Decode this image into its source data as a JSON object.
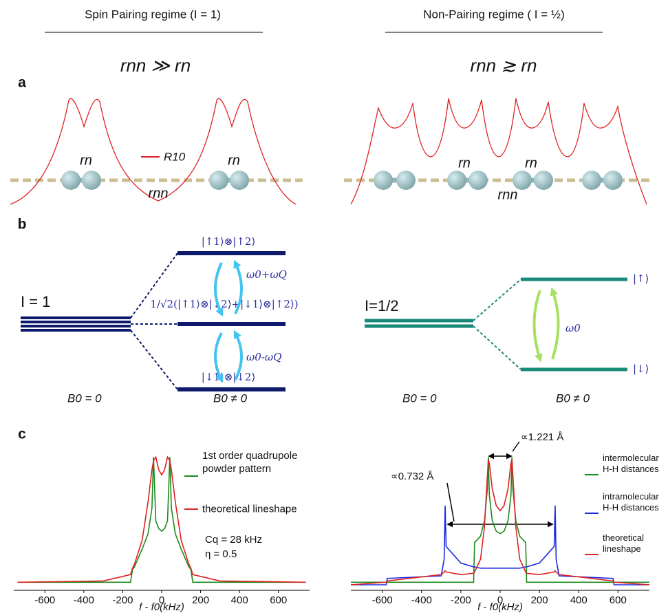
{
  "header": {
    "left_title": "Spin Pairing regime (I = 1)",
    "right_title": "Non-Pairing regime ( I = ½)",
    "left_condition": "rnn ≫ rn",
    "right_condition": "rnn ≳ rn"
  },
  "panel_labels": [
    "a",
    "b",
    "c"
  ],
  "panel_a": {
    "legend": "R10",
    "left_labels": [
      "rn",
      "rn",
      "rnn"
    ],
    "right_labels": [
      "rn",
      "rn",
      "rnn"
    ]
  },
  "panel_b": {
    "left": {
      "spin": "I = 1",
      "states": [
        "|↑1⟩⊗|↑2⟩",
        "1/√2(|↑1⟩⊗|↓2⟩+|↓1⟩⊗|↑2⟩)",
        "|↓1⟩⊗|↓2⟩"
      ],
      "transitions": [
        "ω0+ωQ",
        "ω0-ωQ"
      ],
      "field_off": "B0 = 0",
      "field_on": "B0 ≠ 0"
    },
    "right": {
      "spin": "I=1/2",
      "states": [
        "|↑⟩",
        "|↓⟩"
      ],
      "transition": "ω0",
      "field_off": "B0 = 0",
      "field_on": "B0 ≠ 0"
    }
  },
  "chart_data": [
    {
      "type": "line",
      "xlabel": "f - f0(kHz)",
      "x": [
        -740,
        -300,
        -160,
        -150,
        -140,
        -100,
        -70,
        -50,
        -42,
        -30,
        -15,
        0,
        15,
        30,
        42,
        50,
        70,
        100,
        140,
        150,
        160,
        300,
        740
      ],
      "series": [
        {
          "name": "1st order quadrupole powder pattern",
          "color": "#1a8a1a",
          "values": [
            0.02,
            0.02,
            0.02,
            0.12,
            0.14,
            0.28,
            0.4,
            0.6,
            1.0,
            0.5,
            0.44,
            0.42,
            0.44,
            0.5,
            1.0,
            0.6,
            0.4,
            0.28,
            0.14,
            0.12,
            0.02,
            0.02,
            0.02
          ]
        },
        {
          "name": "theoretical lineshape",
          "color": "#e02020",
          "values": [
            0.02,
            0.03,
            0.08,
            0.13,
            0.16,
            0.35,
            0.65,
            0.9,
            0.97,
            1.0,
            0.9,
            0.86,
            0.9,
            1.0,
            0.97,
            0.9,
            0.65,
            0.35,
            0.16,
            0.13,
            0.08,
            0.03,
            0.02
          ]
        }
      ],
      "annotations": [
        "Cq = 28 kHz",
        "η = 0.5"
      ],
      "xlim": [
        -760,
        760
      ],
      "xticks": [
        -600,
        -400,
        -200,
        0,
        200,
        400,
        600
      ],
      "ylim": [
        0,
        1.05
      ]
    },
    {
      "type": "line",
      "xlabel": "f - f0(kHz)",
      "x": [
        -760,
        -580,
        -575,
        -300,
        -285,
        -280,
        -275,
        -200,
        -135,
        -130,
        -100,
        -80,
        -65,
        -60,
        -55,
        -40,
        -20,
        0,
        20,
        40,
        55,
        60,
        65,
        80,
        100,
        130,
        135,
        200,
        275,
        280,
        285,
        300,
        575,
        580,
        760
      ],
      "series": [
        {
          "name": "intermolecular H-H distances",
          "color": "#1a8a1a",
          "values": [
            0.02,
            0.02,
            0.02,
            0.02,
            0.02,
            0.02,
            0.02,
            0.02,
            0.02,
            0.33,
            0.38,
            0.5,
            0.75,
            1.0,
            0.7,
            0.5,
            0.42,
            0.4,
            0.42,
            0.5,
            0.7,
            1.0,
            0.75,
            0.5,
            0.38,
            0.33,
            0.02,
            0.02,
            0.02,
            0.02,
            0.02,
            0.02,
            0.02,
            0.02,
            0.02
          ]
        },
        {
          "name": "intramolecular H-H distances",
          "color": "#1a2ae0",
          "values": [
            0.0,
            0.0,
            0.05,
            0.07,
            0.2,
            0.62,
            0.3,
            0.17,
            0.14,
            0.14,
            0.13,
            0.13,
            0.13,
            0.13,
            0.13,
            0.13,
            0.13,
            0.13,
            0.13,
            0.13,
            0.13,
            0.13,
            0.13,
            0.13,
            0.13,
            0.14,
            0.14,
            0.17,
            0.3,
            0.62,
            0.2,
            0.07,
            0.05,
            0.0,
            0.0
          ]
        },
        {
          "name": "theoretical lineshape",
          "color": "#e02020",
          "values": [
            0.0,
            0.02,
            0.03,
            0.08,
            0.1,
            0.11,
            0.1,
            0.08,
            0.09,
            0.1,
            0.2,
            0.45,
            0.85,
            0.98,
            0.95,
            0.75,
            0.62,
            0.58,
            0.62,
            0.75,
            0.95,
            0.98,
            0.85,
            0.45,
            0.2,
            0.1,
            0.09,
            0.08,
            0.1,
            0.11,
            0.1,
            0.08,
            0.03,
            0.02,
            0.0
          ]
        }
      ],
      "annotations": [
        "∝1.221 Å",
        "∝0.732 Å"
      ],
      "xlim": [
        -760,
        760
      ],
      "xticks": [
        -600,
        -400,
        -200,
        0,
        200,
        400,
        600
      ],
      "ylim": [
        0,
        1.05
      ]
    }
  ]
}
